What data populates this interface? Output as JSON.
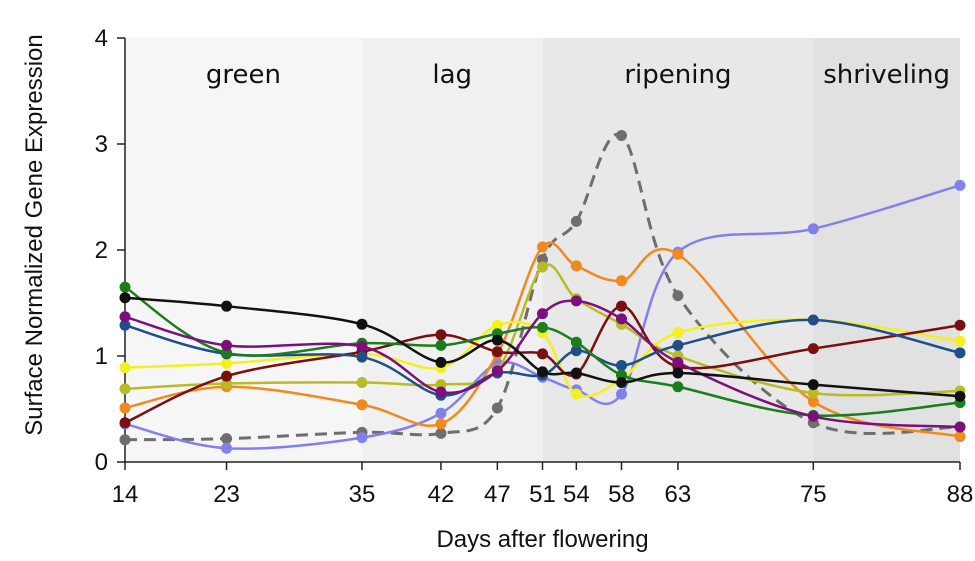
{
  "chart_data": {
    "type": "line",
    "xlabel": "Days after flowering",
    "ylabel": "Surface Normalized Gene Expression",
    "xlim": [
      14,
      88
    ],
    "ylim": [
      0,
      4
    ],
    "x_ticks": [
      14,
      23,
      35,
      42,
      47,
      51,
      54,
      58,
      63,
      75,
      88
    ],
    "y_ticks": [
      0,
      1,
      2,
      3,
      4
    ],
    "grid": false,
    "phases": [
      {
        "label": "green",
        "start": 14,
        "end": 35,
        "color": "#f6f6f6"
      },
      {
        "label": "lag",
        "start": 35,
        "end": 51,
        "color": "#f0f0f0"
      },
      {
        "label": "ripening",
        "start": 51,
        "end": 75,
        "color": "#e8e8e8"
      },
      {
        "label": "shriveling",
        "start": 75,
        "end": 88,
        "color": "#e1e1e1"
      }
    ],
    "x": [
      14,
      23,
      35,
      42,
      47,
      51,
      54,
      58,
      63,
      75,
      88
    ],
    "series": [
      {
        "color": "#6e6e6e",
        "dashed": true,
        "values": [
          0.21,
          0.22,
          0.28,
          0.27,
          0.51,
          1.91,
          2.27,
          3.08,
          1.57,
          0.37,
          0.33
        ]
      },
      {
        "color": "#8080ee",
        "dashed": false,
        "values": [
          0.36,
          0.13,
          0.23,
          0.46,
          0.93,
          0.8,
          0.68,
          0.64,
          1.98,
          2.2,
          2.61
        ]
      },
      {
        "color": "#f0891e",
        "dashed": false,
        "values": [
          0.51,
          0.71,
          0.54,
          0.36,
          1.02,
          2.03,
          1.85,
          1.71,
          1.96,
          0.57,
          0.24
        ]
      },
      {
        "color": "#b9bb25",
        "dashed": false,
        "values": [
          0.69,
          0.74,
          0.75,
          0.73,
          0.87,
          1.84,
          1.54,
          1.3,
          1.0,
          0.65,
          0.67
        ]
      },
      {
        "color": "#f4f01c",
        "dashed": false,
        "values": [
          0.89,
          0.93,
          1.02,
          0.89,
          1.29,
          1.22,
          0.64,
          0.78,
          1.22,
          1.34,
          1.14
        ]
      },
      {
        "color": "#7a0f0f",
        "dashed": false,
        "values": [
          0.37,
          0.81,
          1.04,
          1.2,
          1.04,
          1.02,
          0.83,
          1.47,
          0.9,
          1.07,
          1.29
        ]
      },
      {
        "color": "#1f4f8a",
        "dashed": false,
        "values": [
          1.29,
          1.02,
          0.99,
          0.63,
          0.84,
          0.82,
          1.05,
          0.91,
          1.1,
          1.34,
          1.03
        ]
      },
      {
        "color": "#1b7d1b",
        "dashed": false,
        "values": [
          1.65,
          1.03,
          1.12,
          1.1,
          1.21,
          1.27,
          1.13,
          0.82,
          0.71,
          0.44,
          0.56
        ]
      },
      {
        "color": "#7d0f7d",
        "dashed": false,
        "values": [
          1.37,
          1.1,
          1.09,
          0.66,
          0.86,
          1.4,
          1.52,
          1.35,
          0.94,
          0.43,
          0.33
        ]
      },
      {
        "color": "#111111",
        "dashed": false,
        "values": [
          1.55,
          1.47,
          1.3,
          0.94,
          1.15,
          0.85,
          0.84,
          0.75,
          0.84,
          0.73,
          0.62
        ]
      }
    ]
  }
}
